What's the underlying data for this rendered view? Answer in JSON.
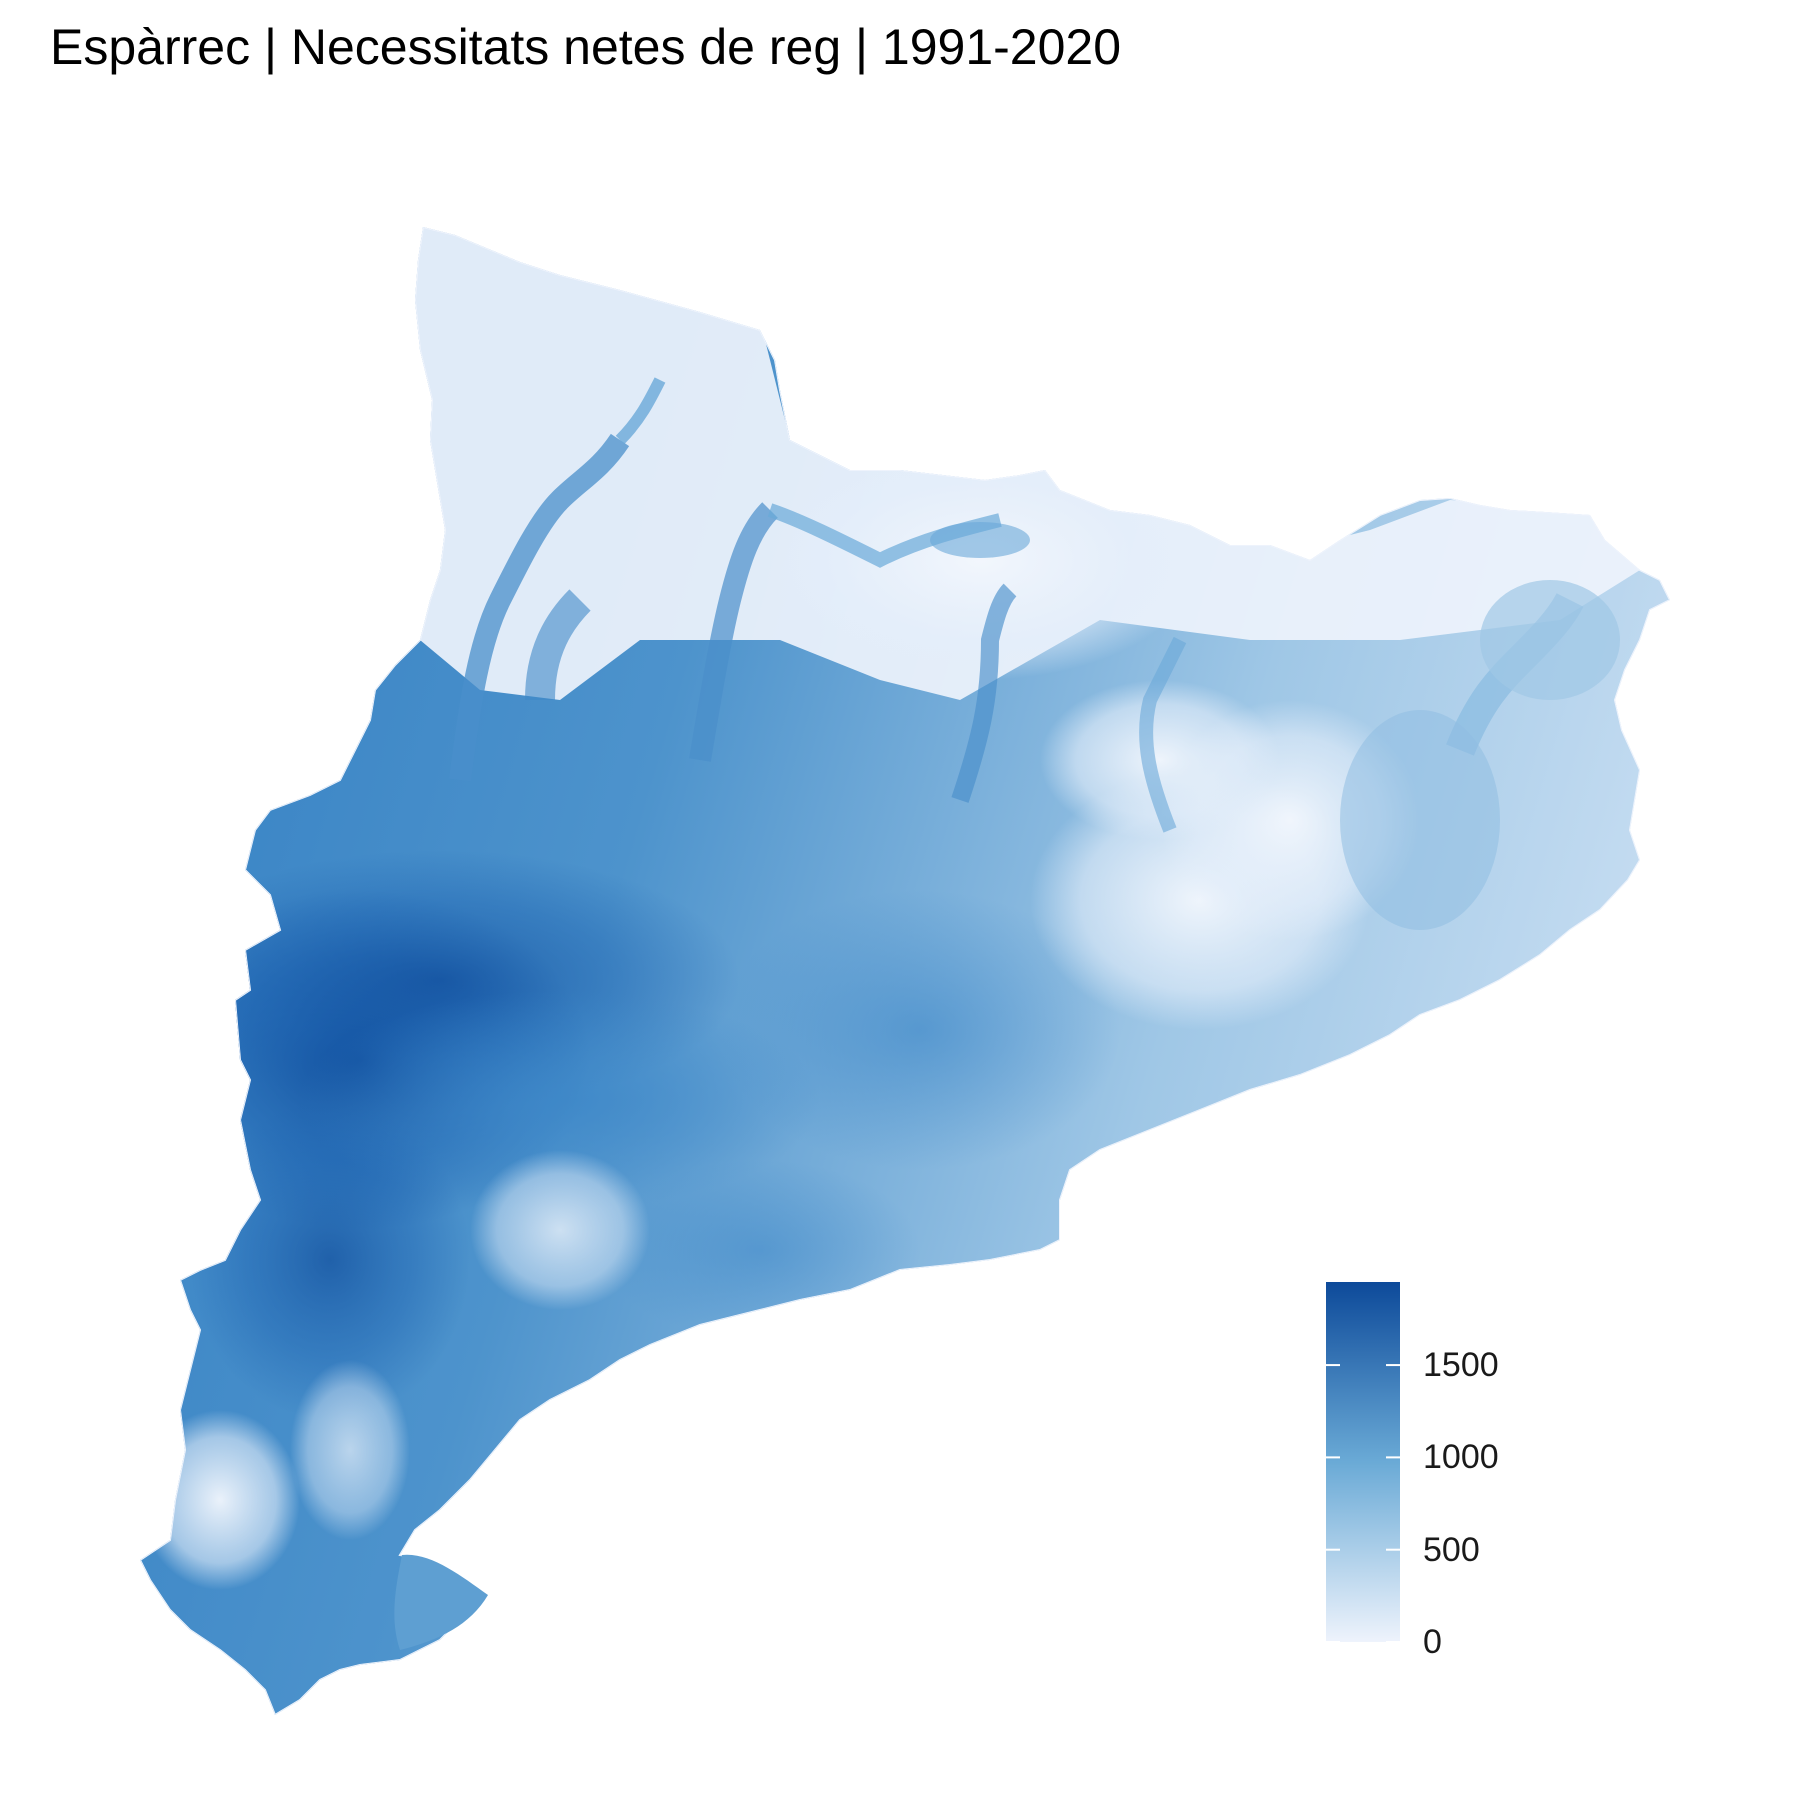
{
  "title": "Espàrrec | Necessitats netes de reg | 1991-2020",
  "legend": {
    "min": 0,
    "max": 1950,
    "ticks": [
      {
        "value": 1500,
        "label": "1500"
      },
      {
        "value": 1000,
        "label": "1000"
      },
      {
        "value": 500,
        "label": "500"
      },
      {
        "value": 0,
        "label": "0"
      }
    ],
    "color_low": "#eef3fc",
    "color_mid": "#6aaad6",
    "color_high": "#0d4a9a"
  }
}
